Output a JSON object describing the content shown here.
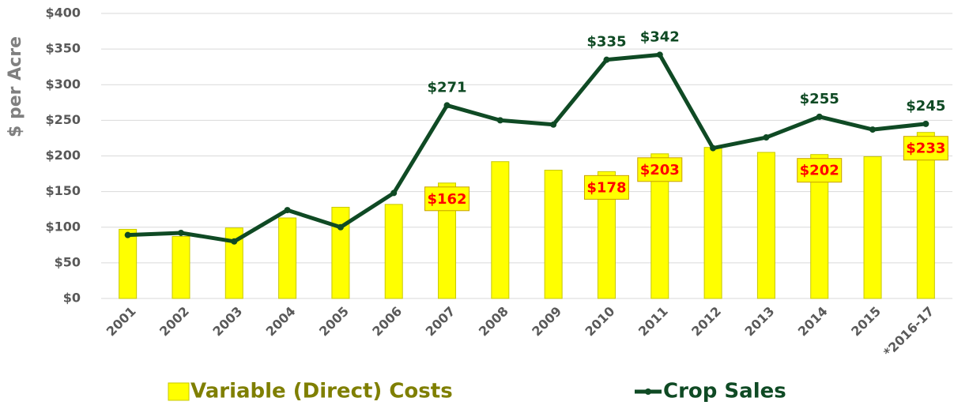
{
  "chart_data": {
    "type": "bar_line",
    "y_label": "$ per Acre",
    "categories": [
      "2001",
      "2002",
      "2003",
      "2004",
      "2005",
      "2006",
      "2007",
      "2008",
      "2009",
      "2010",
      "2011",
      "2012",
      "2013",
      "2014",
      "2015",
      "*2016-17"
    ],
    "series": [
      {
        "name": "Variable (Direct) Costs",
        "type": "bar",
        "color": "#ffff00",
        "values": [
          97,
          87,
          99,
          113,
          128,
          132,
          162,
          192,
          180,
          178,
          203,
          212,
          205,
          202,
          199,
          233
        ],
        "value_labels": [
          null,
          null,
          null,
          null,
          null,
          null,
          "$162",
          null,
          null,
          "$178",
          "$203",
          null,
          null,
          "$202",
          null,
          "$233"
        ]
      },
      {
        "name": "Crop Sales",
        "type": "line",
        "color": "#0f4a24",
        "values": [
          89,
          92,
          80,
          124,
          100,
          148,
          271,
          250,
          244,
          335,
          342,
          211,
          226,
          255,
          237,
          245
        ],
        "value_labels": [
          null,
          null,
          null,
          null,
          null,
          null,
          "$271",
          null,
          null,
          "$335",
          "$342",
          null,
          null,
          "$255",
          null,
          "$245"
        ]
      }
    ],
    "ylim": [
      0,
      400
    ],
    "yticks": [
      {
        "value": 0,
        "label": "$0"
      },
      {
        "value": 50,
        "label": "$50"
      },
      {
        "value": 100,
        "label": "$100"
      },
      {
        "value": 150,
        "label": "$150"
      },
      {
        "value": 200,
        "label": "$200"
      },
      {
        "value": 250,
        "label": "$250"
      },
      {
        "value": 300,
        "label": "$300"
      },
      {
        "value": 350,
        "label": "$350"
      },
      {
        "value": 400,
        "label": "$400"
      }
    ],
    "grid": true
  }
}
